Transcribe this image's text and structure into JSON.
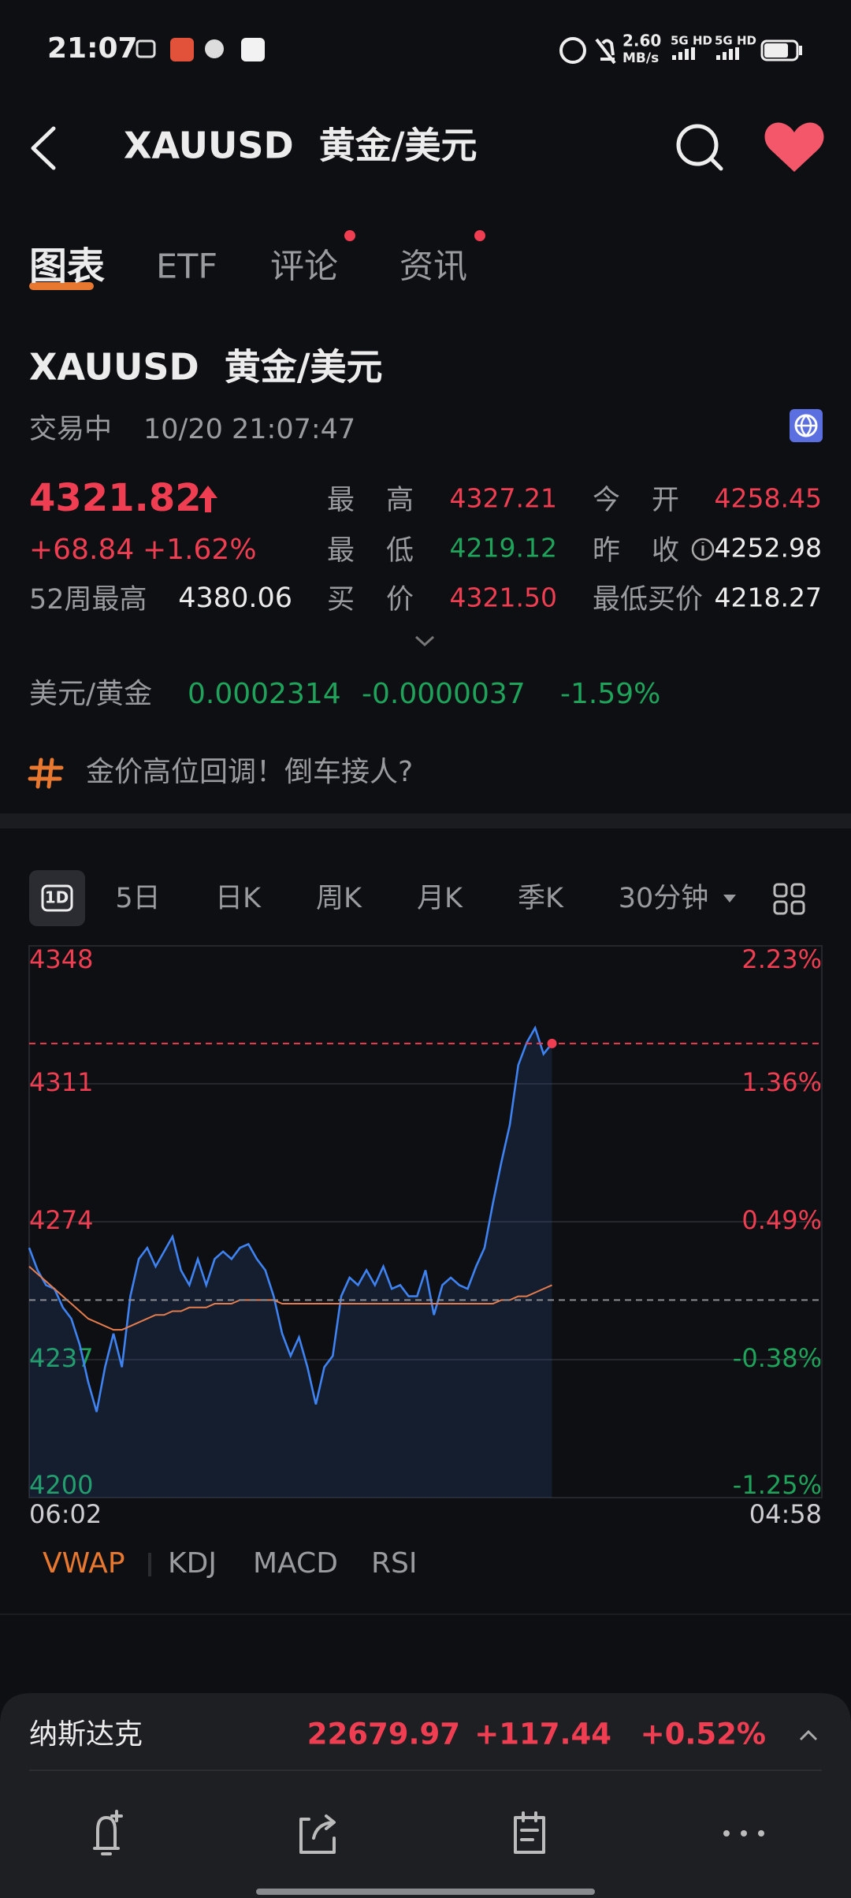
{
  "status_bar": {
    "time": "21:07",
    "net_speed": "2.60",
    "net_unit": "MB/s",
    "signal_1": "5G HD",
    "signal_2": "5G HD"
  },
  "header": {
    "title": "XAUUSD  黄金/美元"
  },
  "tabs": [
    "图表",
    "ETF",
    "评论",
    "资讯"
  ],
  "quote": {
    "name": "XAUUSD  黄金/美元",
    "status": "交易中",
    "datetime": "10/20 21:07:47",
    "price": "4321.82",
    "change": "+68.84",
    "change_pct": "+1.62%",
    "week52_label": "52周最高",
    "week52_value": "4380.06",
    "stats": [
      {
        "label": "最高",
        "value": "4327.21"
      },
      {
        "label": "今开",
        "value": "4258.45"
      },
      {
        "label": "最低",
        "value": "4219.12"
      },
      {
        "label": "昨收",
        "value": "4252.98"
      },
      {
        "label": "买价",
        "value": "4321.50"
      },
      {
        "label": "最低买价",
        "value": "4218.27"
      }
    ]
  },
  "inverse": {
    "label": "美元/黄金",
    "value": "0.0002314",
    "change": "-0.0000037",
    "change_pct": "-1.59%"
  },
  "topic": "金价高位回调！倒车接人?",
  "periods": [
    "1D",
    "5日",
    "日K",
    "周K",
    "月K",
    "季K",
    "30分钟"
  ],
  "indicators": [
    "VWAP",
    "KDJ",
    "MACD",
    "RSI"
  ],
  "chart_data": {
    "type": "line",
    "categories": [
      "06:02",
      null,
      null,
      null,
      null,
      null,
      null,
      null,
      null,
      null,
      null,
      null,
      null,
      null,
      null,
      null,
      null,
      null,
      null,
      null,
      null,
      null,
      null,
      null,
      null,
      null,
      null,
      null,
      null,
      null,
      null,
      null,
      null,
      null,
      null,
      null,
      null,
      null,
      null,
      null,
      null,
      null,
      null,
      null,
      null,
      null,
      null,
      null,
      null,
      null,
      null,
      null,
      null,
      null,
      null,
      null,
      null,
      null,
      null,
      null,
      null,
      null,
      null,
      null,
      null,
      null,
      null,
      null,
      null,
      null,
      null,
      null,
      null,
      null,
      null,
      null,
      null,
      null,
      null,
      null,
      null,
      null,
      null,
      null,
      null,
      null,
      null,
      null,
      null,
      null,
      null,
      null,
      null,
      null,
      "04:58"
    ],
    "series": [
      {
        "name": "price",
        "color": "#3f83f2",
        "values": [
          4267,
          4261,
          4257,
          4256,
          4251,
          4248,
          4241,
          4231,
          4223,
          4235,
          4244,
          4235,
          4254,
          4264,
          4267,
          4262,
          4266,
          4270,
          4261,
          4257,
          4264,
          4257,
          4264,
          4266,
          4264,
          4267,
          4268,
          4264,
          4261,
          4254,
          4244,
          4238,
          4243,
          4235,
          4225,
          4235,
          4238,
          4254,
          4259,
          4257,
          4261,
          4257,
          4262,
          4256,
          4257,
          4254,
          4254,
          4261,
          4249,
          4257,
          4259,
          4257,
          4256,
          4262,
          4267,
          4279,
          4290,
          4300,
          4316,
          4322,
          4326,
          4319,
          4321.82,
          null,
          null,
          null,
          null,
          null,
          null,
          null,
          null,
          null,
          null,
          null,
          null,
          null,
          null,
          null,
          null,
          null,
          null,
          null,
          null,
          null,
          null,
          null,
          null,
          null,
          null,
          null,
          null,
          null,
          null,
          null,
          null
        ]
      },
      {
        "name": "VWAP",
        "color": "#e47c4e",
        "values": [
          4262,
          4260,
          4258,
          4256,
          4254,
          4252,
          4250,
          4248,
          4247,
          4246,
          4245,
          4245,
          4246,
          4247,
          4248,
          4249,
          4249,
          4250,
          4250,
          4251,
          4251,
          4251,
          4252,
          4252,
          4252,
          4253,
          4253,
          4253,
          4253,
          4253,
          4252,
          4252,
          4252,
          4252,
          4252,
          4252,
          4252,
          4252,
          4252,
          4252,
          4252,
          4252,
          4252,
          4252,
          4252,
          4252,
          4252,
          4252,
          4252,
          4252,
          4252,
          4252,
          4252,
          4252,
          4252,
          4252,
          4253,
          4253,
          4254,
          4254,
          4255,
          4256,
          4257,
          null,
          null,
          null,
          null,
          null,
          null,
          null,
          null,
          null,
          null,
          null,
          null,
          null,
          null,
          null,
          null,
          null,
          null,
          null,
          null,
          null,
          null,
          null,
          null,
          null,
          null,
          null,
          null,
          null,
          null,
          null,
          null
        ]
      }
    ],
    "last_price": 4321.82,
    "prev_close": 4252.98,
    "ylim": [
      4200,
      4348
    ],
    "yticks": [
      4348,
      4311,
      4274,
      4237,
      4200
    ],
    "y2lim": [
      -1.25,
      2.23
    ],
    "y2ticks": [
      {
        "value": 2.23,
        "label": "2.23%"
      },
      {
        "value": 1.36,
        "label": "1.36%"
      },
      {
        "value": 0.49,
        "label": "0.49%"
      },
      {
        "value": -0.38,
        "label": "-0.38%"
      },
      {
        "value": -1.25,
        "label": "-1.25%"
      }
    ],
    "grid": true,
    "up_color": "#ef3e51",
    "down_color": "#1fa35b"
  },
  "ticker_bar": {
    "name": "纳斯达克",
    "value": "22679.97",
    "change": "+117.44",
    "change_pct": "+0.52%"
  }
}
